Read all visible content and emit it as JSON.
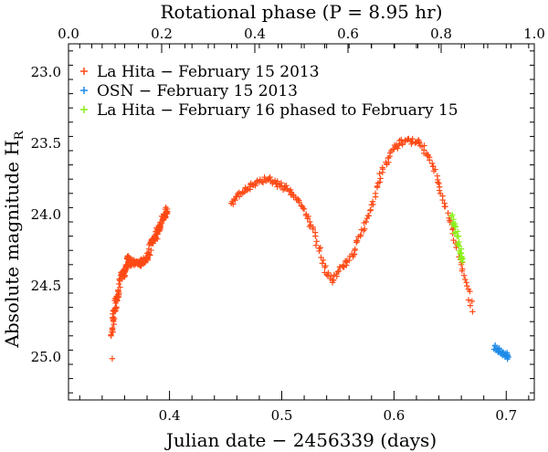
{
  "chart_data": {
    "type": "scatter",
    "title": "",
    "top_axis": {
      "label": "Rotational phase (P = 8.95 hr)",
      "range": [
        0.0,
        1.0
      ],
      "ticks": [
        "0.0",
        "0.2",
        "0.4",
        "0.6",
        "0.8",
        "1.0"
      ]
    },
    "xlabel": "Julian date − 2456339 (days)",
    "ylabel_main": "Absolute magnitude H",
    "ylabel_sub": "R",
    "xlim": [
      0.31,
      0.725
    ],
    "ylim": [
      25.3,
      22.8
    ],
    "y_inverted": true,
    "x_ticks": [
      "0.4",
      "0.5",
      "0.6",
      "0.7"
    ],
    "y_ticks": [
      "23.0",
      "23.5",
      "24.0",
      "24.5",
      "25.0"
    ],
    "marker": "+",
    "legend_position": "top-left",
    "series": [
      {
        "name": "La Hita − February 15 2013",
        "color": "#ff4a16",
        "segments": [
          {
            "x": [
              0.348,
              0.349,
              0.35,
              0.351,
              0.352,
              0.353,
              0.354,
              0.355,
              0.356,
              0.357,
              0.358,
              0.359,
              0.36,
              0.361,
              0.362,
              0.363,
              0.364,
              0.365,
              0.366,
              0.368,
              0.37,
              0.372,
              0.374,
              0.376,
              0.378,
              0.38,
              0.382,
              0.383,
              0.384,
              0.385,
              0.386,
              0.387,
              0.388,
              0.389,
              0.39,
              0.391,
              0.392,
              0.393,
              0.394,
              0.395,
              0.396,
              0.397,
              0.398
            ],
            "y": [
              24.85,
              24.8,
              24.72,
              24.68,
              24.62,
              24.6,
              24.56,
              24.55,
              24.45,
              24.42,
              24.4,
              24.42,
              24.4,
              24.38,
              24.35,
              24.33,
              24.3,
              24.33,
              24.35,
              24.34,
              24.33,
              24.33,
              24.34,
              24.32,
              24.33,
              24.3,
              24.28,
              24.2,
              24.18,
              24.2,
              24.17,
              24.15,
              24.16,
              24.12,
              24.1,
              24.08,
              24.1,
              24.05,
              24.03,
              24.0,
              24.0,
              23.98,
              23.96
            ]
          },
          {
            "x": [
              0.455,
              0.46,
              0.465,
              0.47,
              0.475,
              0.48,
              0.485,
              0.49,
              0.495,
              0.5,
              0.505,
              0.51,
              0.515,
              0.52,
              0.525,
              0.53,
              0.535,
              0.54,
              0.545,
              0.55,
              0.555,
              0.56,
              0.565,
              0.57,
              0.575,
              0.58,
              0.585,
              0.59,
              0.595,
              0.6,
              0.605,
              0.61,
              0.615,
              0.62,
              0.625,
              0.63,
              0.635,
              0.64,
              0.645,
              0.65,
              0.655,
              0.66,
              0.665,
              0.67
            ],
            "y": [
              23.92,
              23.87,
              23.84,
              23.82,
              23.79,
              23.77,
              23.75,
              23.76,
              23.78,
              23.8,
              23.82,
              23.86,
              23.9,
              23.96,
              24.05,
              24.15,
              24.3,
              24.42,
              24.46,
              24.4,
              24.36,
              24.32,
              24.25,
              24.15,
              24.05,
              23.93,
              23.8,
              23.68,
              23.6,
              23.54,
              23.5,
              23.48,
              23.48,
              23.49,
              23.52,
              23.58,
              23.66,
              23.78,
              23.92,
              24.05,
              24.2,
              24.35,
              24.5,
              24.68
            ]
          }
        ]
      },
      {
        "name": "OSN − February 15 2013",
        "color": "#1e8be8",
        "segments": [
          {
            "x": [
              0.69,
              0.692,
              0.694,
              0.696,
              0.698,
              0.7,
              0.702
            ],
            "y": [
              24.92,
              24.95,
              24.96,
              24.97,
              24.98,
              24.99,
              25.0
            ]
          }
        ]
      },
      {
        "name": "La Hita − February 16 phased to February 15",
        "color": "#8af01a",
        "segments": [
          {
            "x": [
              0.652,
              0.654,
              0.656,
              0.658,
              0.66,
              0.661
            ],
            "y": [
              24.0,
              24.08,
              24.15,
              24.22,
              24.3,
              24.33
            ]
          }
        ]
      }
    ],
    "outliers": [
      {
        "series": 0,
        "x": 0.349,
        "y": 25.01
      },
      {
        "series": 0,
        "x": 0.372,
        "y": 24.35
      }
    ]
  }
}
